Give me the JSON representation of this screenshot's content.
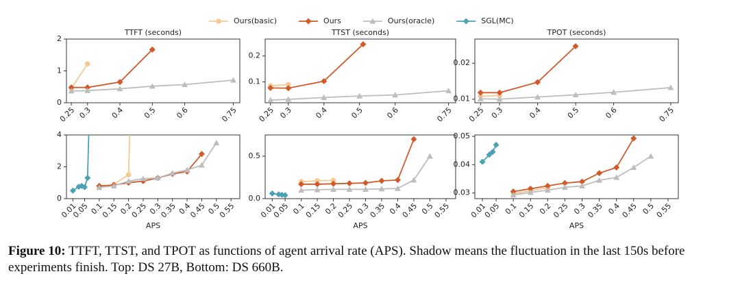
{
  "chart_data": [
    {
      "type": "line",
      "title": "TTFT (seconds)",
      "xlim": [
        0.235,
        0.77
      ],
      "ylim": [
        0,
        2
      ],
      "xticks": [
        0.25,
        0.3,
        0.4,
        0.5,
        0.6,
        0.75
      ],
      "yticks": [
        0,
        1,
        2
      ],
      "series": [
        {
          "name": "Ours(basic)",
          "color": "#f6c993",
          "marker": "circle",
          "x": [
            0.25,
            0.3
          ],
          "values": [
            0.45,
            1.22
          ]
        },
        {
          "name": "Ours",
          "color": "#d1592a",
          "marker": "diamond",
          "x": [
            0.25,
            0.3,
            0.4,
            0.5
          ],
          "values": [
            0.48,
            0.48,
            0.65,
            1.67
          ]
        },
        {
          "name": "Ours(oracle)",
          "color": "#bdbdbd",
          "marker": "triangle",
          "x": [
            0.25,
            0.3,
            0.4,
            0.5,
            0.6,
            0.75
          ],
          "values": [
            0.37,
            0.38,
            0.44,
            0.52,
            0.57,
            0.71
          ]
        }
      ]
    },
    {
      "type": "line",
      "title": "TTST (seconds)",
      "xlim": [
        0.235,
        0.77
      ],
      "ylim": [
        0.02,
        0.265
      ],
      "xticks": [
        0.25,
        0.3,
        0.4,
        0.5,
        0.6,
        0.75
      ],
      "yticks": [
        0.1,
        0.2
      ],
      "series": [
        {
          "name": "Ours(basic)",
          "color": "#f6c993",
          "marker": "circle",
          "x": [
            0.25,
            0.3
          ],
          "values": [
            0.085,
            0.09
          ]
        },
        {
          "name": "Ours",
          "color": "#d1592a",
          "marker": "diamond",
          "x": [
            0.25,
            0.3,
            0.4,
            0.51
          ],
          "values": [
            0.077,
            0.076,
            0.103,
            0.245
          ]
        },
        {
          "name": "Ours(oracle)",
          "color": "#bdbdbd",
          "marker": "triangle",
          "x": [
            0.25,
            0.3,
            0.4,
            0.5,
            0.6,
            0.75
          ],
          "values": [
            0.03,
            0.033,
            0.04,
            0.046,
            0.05,
            0.066
          ]
        }
      ]
    },
    {
      "type": "line",
      "title": "TPOT (seconds)",
      "xlim": [
        0.235,
        0.77
      ],
      "ylim": [
        0.009,
        0.0267
      ],
      "xticks": [
        0.25,
        0.3,
        0.4,
        0.5,
        0.6,
        0.75
      ],
      "yticks": [
        0.01,
        0.02
      ],
      "series": [
        {
          "name": "Ours(basic)",
          "color": "#f6c993",
          "marker": "circle",
          "x": [
            0.25,
            0.3
          ],
          "values": [
            0.0108,
            0.011
          ]
        },
        {
          "name": "Ours",
          "color": "#d1592a",
          "marker": "diamond",
          "x": [
            0.25,
            0.3,
            0.4,
            0.5
          ],
          "values": [
            0.0118,
            0.0118,
            0.0147,
            0.0247
          ]
        },
        {
          "name": "Ours(oracle)",
          "color": "#bdbdbd",
          "marker": "triangle",
          "x": [
            0.25,
            0.3,
            0.4,
            0.5,
            0.6,
            0.75
          ],
          "values": [
            0.0101,
            0.01,
            0.0106,
            0.0112,
            0.0119,
            0.0132
          ]
        }
      ]
    },
    {
      "type": "line",
      "xlabel": "APS",
      "legend": "figure-top",
      "xlim": [
        -0.012,
        0.58
      ],
      "ylim": [
        0,
        4
      ],
      "xticks": [
        0.01,
        0.05,
        0.1,
        0.15,
        0.2,
        0.25,
        0.3,
        0.35,
        0.4,
        0.45,
        0.5,
        0.55
      ],
      "yticks": [
        0,
        2,
        4
      ],
      "series": [
        {
          "name": "Ours(basic)",
          "color": "#f6c993",
          "marker": "circle",
          "x": [
            0.1,
            0.15,
            0.2,
            0.21
          ],
          "values": [
            0.75,
            0.9,
            1.5,
            8
          ]
        },
        {
          "name": "Ours",
          "color": "#d1592a",
          "marker": "diamond",
          "x": [
            0.1,
            0.15,
            0.2,
            0.25,
            0.3,
            0.35,
            0.4,
            0.45
          ],
          "values": [
            0.8,
            0.85,
            1.0,
            1.1,
            1.3,
            1.55,
            1.7,
            2.8
          ]
        },
        {
          "name": "Ours(oracle)",
          "color": "#bdbdbd",
          "marker": "triangle",
          "x": [
            0.1,
            0.15,
            0.2,
            0.25,
            0.3,
            0.35,
            0.4,
            0.45,
            0.5
          ],
          "values": [
            0.7,
            0.8,
            1.1,
            1.25,
            1.3,
            1.6,
            1.8,
            2.1,
            3.5
          ]
        },
        {
          "name": "SGL(MC)",
          "color": "#4aa0b5",
          "marker": "diamond",
          "x": [
            0.01,
            0.03,
            0.04,
            0.05,
            0.06,
            0.07
          ],
          "values": [
            0.5,
            0.75,
            0.8,
            0.72,
            1.3,
            8
          ]
        }
      ]
    },
    {
      "type": "line",
      "xlabel": "APS",
      "xlim": [
        -0.012,
        0.58
      ],
      "ylim": [
        0,
        0.75
      ],
      "xticks": [
        0.01,
        0.05,
        0.1,
        0.15,
        0.2,
        0.25,
        0.3,
        0.35,
        0.4,
        0.45,
        0.5,
        0.55
      ],
      "yticks": [
        {
          "value": 0,
          "label": "0.0"
        },
        0.5
      ],
      "series": [
        {
          "name": "Ours(basic)",
          "color": "#f6c993",
          "marker": "circle",
          "x": [
            0.1,
            0.15,
            0.2
          ],
          "values": [
            0.2,
            0.21,
            0.215
          ]
        },
        {
          "name": "Ours",
          "color": "#d1592a",
          "marker": "diamond",
          "x": [
            0.1,
            0.15,
            0.2,
            0.25,
            0.3,
            0.35,
            0.4,
            0.45
          ],
          "values": [
            0.17,
            0.17,
            0.175,
            0.18,
            0.185,
            0.21,
            0.22,
            0.7
          ]
        },
        {
          "name": "Ours(oracle)",
          "color": "#bdbdbd",
          "marker": "triangle",
          "x": [
            0.1,
            0.15,
            0.2,
            0.25,
            0.3,
            0.35,
            0.4,
            0.45,
            0.5
          ],
          "values": [
            0.1,
            0.105,
            0.11,
            0.11,
            0.11,
            0.115,
            0.12,
            0.22,
            0.5
          ]
        },
        {
          "name": "SGL(MC)",
          "color": "#4aa0b5",
          "marker": "diamond",
          "x": [
            0.01,
            0.03,
            0.04,
            0.05
          ],
          "values": [
            0.06,
            0.05,
            0.045,
            0.04
          ]
        }
      ]
    },
    {
      "type": "line",
      "xlabel": "APS",
      "xlim": [
        -0.012,
        0.58
      ],
      "ylim": [
        0.028,
        0.0505
      ],
      "xticks": [
        0.01,
        0.05,
        0.1,
        0.15,
        0.2,
        0.25,
        0.3,
        0.35,
        0.4,
        0.45,
        0.5,
        0.55
      ],
      "yticks": [
        0.03,
        0.04,
        0.05
      ],
      "series": [
        {
          "name": "Ours(basic)",
          "color": "#f6c993",
          "marker": "circle",
          "x": [
            0.1,
            0.15,
            0.2
          ],
          "values": [
            0.0298,
            0.0308,
            0.0318
          ]
        },
        {
          "name": "Ours",
          "color": "#d1592a",
          "marker": "diamond",
          "x": [
            0.1,
            0.15,
            0.2,
            0.25,
            0.3,
            0.35,
            0.4,
            0.45
          ],
          "values": [
            0.0305,
            0.0315,
            0.0325,
            0.0335,
            0.034,
            0.037,
            0.039,
            0.0493
          ]
        },
        {
          "name": "Ours(oracle)",
          "color": "#bdbdbd",
          "marker": "triangle",
          "x": [
            0.1,
            0.15,
            0.2,
            0.25,
            0.3,
            0.35,
            0.4,
            0.45,
            0.5
          ],
          "values": [
            0.0293,
            0.0302,
            0.031,
            0.032,
            0.0325,
            0.0345,
            0.0355,
            0.039,
            0.043
          ]
        },
        {
          "name": "SGL(MC)",
          "color": "#4aa0b5",
          "marker": "diamond",
          "x": [
            0.01,
            0.03,
            0.04,
            0.05
          ],
          "values": [
            0.041,
            0.0435,
            0.0445,
            0.047
          ]
        }
      ]
    }
  ],
  "caption": {
    "label": "Figure 10:",
    "text": "TTFT, TTST, and TPOT as functions of agent arrival rate (APS). Shadow means the fluctuation in the last 150s before experiments finish. Top: DS 27B, Bottom: DS 660B."
  }
}
